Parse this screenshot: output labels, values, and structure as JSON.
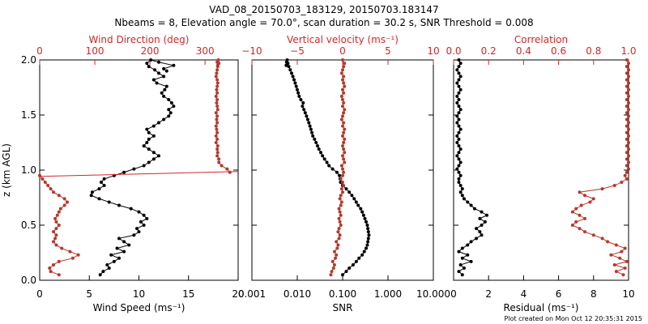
{
  "title_line1": "VAD_08_20150703_183129, 20150703.183147",
  "title_line2": "Nbeams = 8, Elevation angle = 70.0°, scan duration = 30.2 s, SNR Threshold = 0.008",
  "footer": "Plot created on Mon Oct 12 20:35:31 2015",
  "colors": {
    "black_series": "#000000",
    "red_series": "#b5392b",
    "red_axis": "#cc2a2a"
  },
  "chart_data": [
    {
      "type": "line",
      "panel": "wind",
      "ylabel": "z (km AGL)",
      "ylim": [
        0,
        2
      ],
      "yticks": [
        "0.0",
        "0.5",
        "1.0",
        "1.5",
        "2.0"
      ],
      "bottom_axis": {
        "label": "Wind Speed (ms⁻¹)",
        "lim": [
          0,
          20
        ],
        "ticks": [
          "0",
          "5",
          "10",
          "15",
          "20"
        ]
      },
      "top_axis": {
        "label": "Wind Direction (deg)",
        "lim": [
          0,
          360
        ],
        "ticks": [
          "0",
          "100",
          "200",
          "300"
        ]
      },
      "series": [
        {
          "name": "Wind Speed",
          "axis": "bottom",
          "color": "black",
          "x": [
            6.1,
            6.4,
            7.0,
            6.8,
            7.5,
            8.0,
            7.2,
            8.5,
            7.8,
            9.0,
            8.5,
            8.0,
            9.5,
            10.0,
            9.8,
            10.5,
            10.2,
            10.8,
            10.5,
            10.0,
            9.2,
            8.0,
            7.0,
            6.0,
            5.2,
            5.3,
            6.0,
            6.5,
            6.2,
            6.5,
            7.5,
            8.5,
            9.5,
            10.5,
            11.0,
            11.5,
            12.0,
            11.5,
            11.0,
            10.5,
            10.8,
            11.0,
            11.5,
            11.0,
            10.8,
            11.5,
            12.0,
            12.5,
            13.0,
            13.2,
            13.0,
            13.5,
            13.3,
            13.0,
            12.5,
            12.3,
            12.6,
            12.8,
            11.8,
            11.5,
            12.5,
            12.0,
            11.6,
            11.0,
            10.8,
            11.2,
            12.0,
            13.5,
            12.5,
            12.8
          ],
          "z": [
            0.05,
            0.08,
            0.11,
            0.14,
            0.17,
            0.2,
            0.23,
            0.26,
            0.29,
            0.32,
            0.35,
            0.38,
            0.41,
            0.44,
            0.47,
            0.5,
            0.53,
            0.56,
            0.59,
            0.62,
            0.65,
            0.68,
            0.71,
            0.74,
            0.77,
            0.8,
            0.83,
            0.86,
            0.89,
            0.92,
            0.95,
            0.98,
            1.01,
            1.04,
            1.07,
            1.1,
            1.13,
            1.16,
            1.19,
            1.22,
            1.25,
            1.28,
            1.31,
            1.34,
            1.37,
            1.4,
            1.43,
            1.46,
            1.49,
            1.52,
            1.55,
            1.58,
            1.61,
            1.64,
            1.67,
            1.7,
            1.73,
            1.76,
            1.79,
            1.82,
            1.85,
            1.88,
            1.91,
            1.94,
            1.97,
            2.0,
            1.98,
            1.95,
            1.92,
            1.9
          ]
        },
        {
          "name": "Wind Direction",
          "axis": "top",
          "color": "red",
          "x": [
            35,
            20,
            18,
            25,
            35,
            60,
            70,
            55,
            40,
            30,
            25,
            28,
            30,
            25,
            30,
            35,
            30,
            28,
            32,
            35,
            38,
            45,
            50,
            45,
            35,
            25,
            20,
            15,
            10,
            5,
            0,
            345,
            340,
            330,
            325,
            325,
            322,
            323,
            322,
            323,
            320,
            322,
            320,
            322,
            321,
            320,
            322,
            321,
            322,
            320,
            323,
            322,
            321,
            322,
            320,
            322,
            321,
            322,
            323,
            322,
            320,
            321,
            322,
            323,
            325,
            324,
            322,
            323
          ],
          "z": [
            0.05,
            0.08,
            0.11,
            0.14,
            0.17,
            0.2,
            0.23,
            0.26,
            0.29,
            0.32,
            0.35,
            0.38,
            0.41,
            0.44,
            0.47,
            0.5,
            0.53,
            0.56,
            0.59,
            0.62,
            0.65,
            0.68,
            0.71,
            0.74,
            0.77,
            0.8,
            0.83,
            0.86,
            0.89,
            0.92,
            0.95,
            0.98,
            1.01,
            1.04,
            1.07,
            1.1,
            1.13,
            1.16,
            1.19,
            1.22,
            1.25,
            1.28,
            1.31,
            1.34,
            1.37,
            1.4,
            1.43,
            1.46,
            1.49,
            1.52,
            1.55,
            1.58,
            1.61,
            1.64,
            1.67,
            1.7,
            1.73,
            1.76,
            1.79,
            1.82,
            1.85,
            1.88,
            1.91,
            1.94,
            1.97,
            2.0,
            1.98,
            1.95
          ]
        }
      ]
    },
    {
      "type": "line",
      "panel": "vertical",
      "bottom_axis": {
        "label": "SNR",
        "scale": "log",
        "lim": [
          0.001,
          10
        ],
        "ticks": [
          "0.001",
          "0.010",
          "0.100",
          "1.000",
          "10.000"
        ],
        "tick_values": [
          0.001,
          0.01,
          0.1,
          1,
          10
        ]
      },
      "top_axis": {
        "label": "Vertical velocity (ms⁻¹)",
        "lim": [
          -10,
          10
        ],
        "ticks": [
          "−10",
          "−5",
          "0",
          "5",
          "10"
        ],
        "tick_values": [
          -10,
          -5,
          0,
          5,
          10
        ]
      },
      "series": [
        {
          "name": "SNR",
          "axis": "bottom",
          "color": "black",
          "x": [
            0.1,
            0.12,
            0.14,
            0.17,
            0.2,
            0.23,
            0.27,
            0.3,
            0.33,
            0.35,
            0.36,
            0.37,
            0.38,
            0.37,
            0.36,
            0.35,
            0.33,
            0.31,
            0.29,
            0.27,
            0.25,
            0.22,
            0.2,
            0.18,
            0.16,
            0.14,
            0.12,
            0.1,
            0.09,
            0.088,
            0.085,
            0.075,
            0.06,
            0.05,
            0.045,
            0.04,
            0.036,
            0.033,
            0.03,
            0.028,
            0.026,
            0.024,
            0.022,
            0.021,
            0.02,
            0.019,
            0.018,
            0.017,
            0.016,
            0.015,
            0.014,
            0.013,
            0.0135,
            0.012,
            0.011,
            0.0105,
            0.01,
            0.0095,
            0.009,
            0.0085,
            0.008,
            0.0075,
            0.007,
            0.0065,
            0.0062,
            0.006,
            0.0058,
            0.0057
          ],
          "z": [
            0.05,
            0.08,
            0.11,
            0.14,
            0.17,
            0.2,
            0.23,
            0.26,
            0.29,
            0.32,
            0.35,
            0.38,
            0.41,
            0.44,
            0.47,
            0.5,
            0.53,
            0.56,
            0.59,
            0.62,
            0.65,
            0.68,
            0.71,
            0.74,
            0.77,
            0.8,
            0.83,
            0.86,
            0.89,
            0.92,
            0.95,
            0.98,
            1.01,
            1.04,
            1.07,
            1.1,
            1.13,
            1.16,
            1.19,
            1.22,
            1.25,
            1.28,
            1.31,
            1.34,
            1.37,
            1.4,
            1.43,
            1.46,
            1.49,
            1.52,
            1.55,
            1.58,
            1.61,
            1.64,
            1.67,
            1.7,
            1.73,
            1.76,
            1.79,
            1.82,
            1.85,
            1.88,
            1.91,
            1.94,
            1.97,
            2.0,
            1.98,
            1.95
          ]
        },
        {
          "name": "Vertical velocity",
          "axis": "top",
          "color": "red",
          "x": [
            -1.3,
            -1.2,
            -1.0,
            -0.9,
            -1.1,
            -0.8,
            -0.7,
            -0.9,
            -0.6,
            -0.5,
            -0.7,
            -0.4,
            -0.3,
            -0.5,
            -0.4,
            -0.2,
            -0.3,
            -0.4,
            -0.2,
            -0.3,
            -0.4,
            -0.2,
            -0.1,
            -0.3,
            -0.2,
            0.0,
            -0.1,
            0.1,
            0.0,
            -0.2,
            0.0,
            0.1,
            0.0,
            -0.1,
            0.2,
            0.1,
            0.0,
            0.2,
            0.1,
            0.0,
            0.1,
            0.2,
            0.0,
            0.1,
            0.2,
            0.0,
            0.1,
            -0.1,
            0.0,
            0.1,
            0.2,
            0.0,
            0.1,
            0.0,
            -0.1,
            0.1,
            0.0,
            0.2,
            0.1,
            0.0,
            0.1,
            -0.1,
            0.0,
            0.1,
            0.2,
            0.0
          ],
          "z": [
            0.05,
            0.08,
            0.11,
            0.14,
            0.17,
            0.2,
            0.23,
            0.26,
            0.29,
            0.32,
            0.35,
            0.38,
            0.41,
            0.44,
            0.47,
            0.5,
            0.53,
            0.56,
            0.59,
            0.62,
            0.65,
            0.68,
            0.71,
            0.74,
            0.77,
            0.8,
            0.83,
            0.86,
            0.89,
            0.92,
            0.95,
            0.98,
            1.01,
            1.04,
            1.07,
            1.1,
            1.13,
            1.16,
            1.19,
            1.22,
            1.25,
            1.28,
            1.31,
            1.34,
            1.37,
            1.4,
            1.43,
            1.46,
            1.49,
            1.52,
            1.55,
            1.58,
            1.61,
            1.64,
            1.67,
            1.7,
            1.73,
            1.76,
            1.79,
            1.82,
            1.85,
            1.88,
            1.91,
            1.94,
            1.97,
            2.0
          ]
        }
      ]
    },
    {
      "type": "line",
      "panel": "residual",
      "bottom_axis": {
        "label": "Residual (ms⁻¹)",
        "lim": [
          0,
          10
        ],
        "ticks": [
          "0",
          "2",
          "4",
          "6",
          "8",
          "10"
        ],
        "tick_values": [
          0,
          2,
          4,
          6,
          8,
          10
        ]
      },
      "top_axis": {
        "label": "Correlation",
        "lim": [
          0,
          1
        ],
        "ticks": [
          "0.0",
          "0.2",
          "0.4",
          "0.6",
          "0.8",
          "1.0"
        ],
        "tick_values": [
          0,
          0.2,
          0.4,
          0.6,
          0.8,
          1.0
        ]
      },
      "series": [
        {
          "name": "Residual",
          "axis": "bottom",
          "color": "black",
          "x": [
            0.5,
            0.3,
            0.6,
            0.4,
            1.0,
            0.5,
            0.8,
            0.3,
            0.5,
            0.8,
            1.0,
            1.3,
            1.6,
            1.5,
            1.3,
            1.6,
            1.8,
            1.5,
            1.9,
            1.6,
            1.2,
            1.0,
            0.8,
            0.6,
            0.5,
            0.4,
            0.5,
            0.4,
            0.3,
            0.3,
            0.4,
            0.3,
            0.2,
            0.3,
            0.4,
            0.3,
            0.2,
            0.3,
            0.4,
            0.3,
            0.2,
            0.3,
            0.2,
            0.3,
            0.4,
            0.3,
            0.2,
            0.3,
            0.2,
            0.3,
            0.4,
            0.3,
            0.2,
            0.3,
            0.2,
            0.3,
            0.4,
            0.3,
            0.2,
            0.3,
            0.4,
            0.3,
            0.2,
            0.3,
            0.4,
            0.3
          ],
          "z": [
            0.05,
            0.08,
            0.11,
            0.14,
            0.17,
            0.2,
            0.23,
            0.26,
            0.29,
            0.32,
            0.35,
            0.38,
            0.41,
            0.44,
            0.47,
            0.5,
            0.53,
            0.56,
            0.59,
            0.62,
            0.65,
            0.68,
            0.71,
            0.74,
            0.77,
            0.8,
            0.83,
            0.86,
            0.89,
            0.92,
            0.95,
            0.98,
            1.01,
            1.04,
            1.07,
            1.1,
            1.13,
            1.16,
            1.19,
            1.22,
            1.25,
            1.28,
            1.31,
            1.34,
            1.37,
            1.4,
            1.43,
            1.46,
            1.49,
            1.52,
            1.55,
            1.58,
            1.61,
            1.64,
            1.67,
            1.7,
            1.73,
            1.76,
            1.79,
            1.82,
            1.85,
            1.88,
            1.91,
            1.94,
            1.97,
            2.0
          ]
        },
        {
          "name": "Correlation",
          "axis": "top",
          "color": "red",
          "x": [
            0.97,
            0.93,
            0.98,
            0.92,
            0.99,
            0.95,
            0.9,
            0.96,
            0.98,
            0.93,
            0.88,
            0.85,
            0.8,
            0.75,
            0.72,
            0.68,
            0.7,
            0.75,
            0.72,
            0.68,
            0.7,
            0.73,
            0.78,
            0.8,
            0.75,
            0.72,
            0.85,
            0.92,
            0.96,
            0.99,
            0.98,
            0.99,
            1.0,
            0.99,
            1.0,
            0.99,
            1.0,
            0.99,
            1.0,
            0.99,
            1.0,
            0.99,
            1.0,
            0.99,
            1.0,
            0.99,
            1.0,
            0.99,
            1.0,
            0.99,
            1.0,
            0.99,
            1.0,
            0.99,
            1.0,
            0.99,
            1.0,
            0.99,
            1.0,
            0.99,
            1.0,
            0.99,
            1.0,
            0.99,
            1.0,
            0.99
          ],
          "z": [
            0.05,
            0.08,
            0.11,
            0.14,
            0.17,
            0.2,
            0.23,
            0.26,
            0.29,
            0.32,
            0.35,
            0.38,
            0.41,
            0.44,
            0.47,
            0.5,
            0.53,
            0.56,
            0.59,
            0.62,
            0.65,
            0.68,
            0.71,
            0.74,
            0.77,
            0.8,
            0.83,
            0.86,
            0.89,
            0.92,
            0.95,
            0.98,
            1.01,
            1.04,
            1.07,
            1.1,
            1.13,
            1.16,
            1.19,
            1.22,
            1.25,
            1.28,
            1.31,
            1.34,
            1.37,
            1.4,
            1.43,
            1.46,
            1.49,
            1.52,
            1.55,
            1.58,
            1.61,
            1.64,
            1.67,
            1.7,
            1.73,
            1.76,
            1.79,
            1.82,
            1.85,
            1.88,
            1.91,
            1.94,
            1.97,
            2.0
          ]
        }
      ]
    }
  ]
}
